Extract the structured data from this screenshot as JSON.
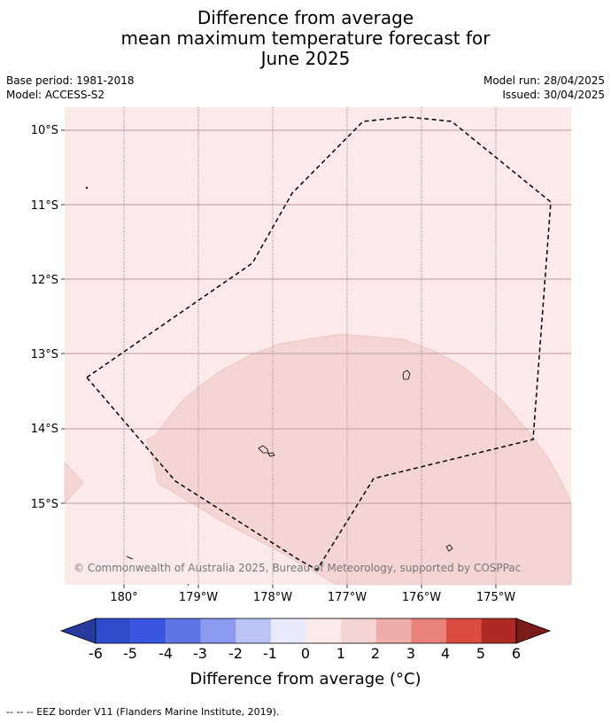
{
  "title": {
    "line1": "Difference from average",
    "line2": "mean maximum temperature forecast for",
    "line3": "June 2025"
  },
  "meta": {
    "base_period": "Base period: 1981-2018",
    "model": "Model: ACCESS-S2",
    "model_run": "Model run: 28/04/2025",
    "issued": "Issued: 30/04/2025"
  },
  "map": {
    "lat_labels": [
      "10°S",
      "11°S",
      "12°S",
      "13°S",
      "14°S",
      "15°S"
    ],
    "lon_labels": [
      "180°",
      "179°W",
      "178°W",
      "177°W",
      "176°W",
      "175°W"
    ],
    "copyright": "© Commonwealth of Australia 2025, Bureau of Meteorology, supported by COSPPac",
    "colors": {
      "background_anomaly_0_1": "#fbeae9",
      "anomaly_1_2": "#f5d5d3",
      "gridline": "#b89aa0"
    }
  },
  "colorbar": {
    "ticks": [
      "-6",
      "-5",
      "-4",
      "-3",
      "-2",
      "-1",
      "0",
      "1",
      "2",
      "3",
      "4",
      "5",
      "6"
    ],
    "colors": [
      "#283b9e",
      "#2f4ccc",
      "#3a55e2",
      "#5d74e4",
      "#8b9aee",
      "#bcc4f5",
      "#e8eafb",
      "#fbeae9",
      "#f5d5d3",
      "#eeacaa",
      "#e8837c",
      "#dc4b41",
      "#ad2b22",
      "#7a1d19"
    ],
    "label": "Difference from average (°C)"
  },
  "footer": {
    "eez_note": "--  --  -- EEZ border V11 (Flanders Marine Institute, 2019)."
  }
}
